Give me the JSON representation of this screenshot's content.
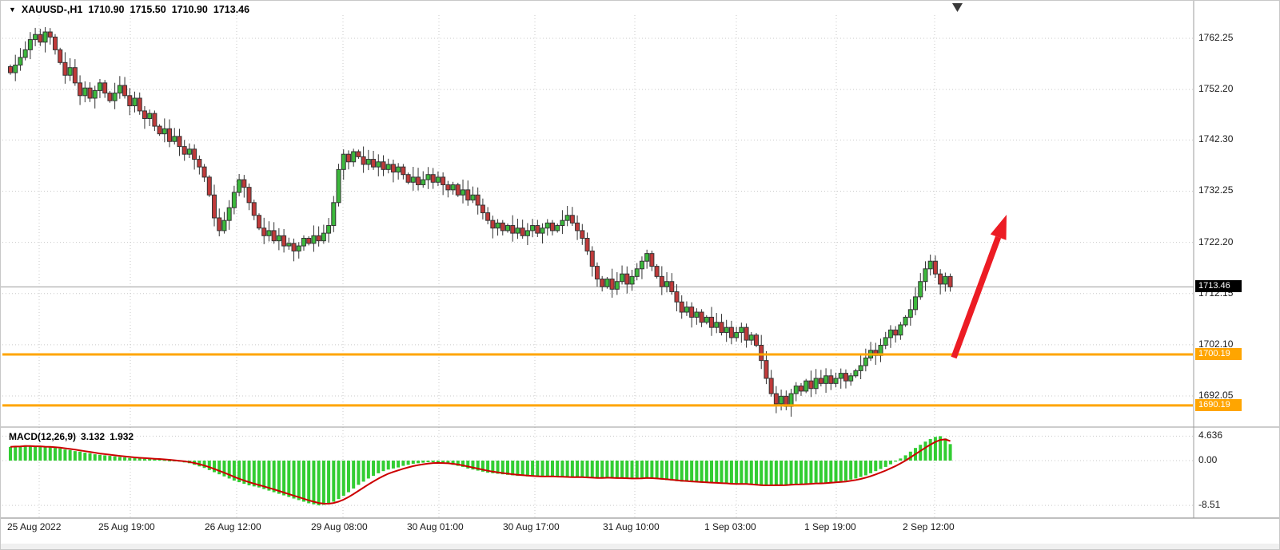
{
  "window": {
    "bg": "#ffffff",
    "border": "#c8c8c8"
  },
  "header": {
    "dropdown_icon": "▼",
    "symbol_period": "XAUUSD-,H1",
    "open": "1710.90",
    "high": "1715.50",
    "low": "1710.90",
    "close": "1713.46"
  },
  "indicator": {
    "label": "MACD(12,26,9)",
    "main_value": "3.132",
    "signal_value": "1.932"
  },
  "price_axis": {
    "labels": [
      "1762.25",
      "1752.20",
      "1742.30",
      "1732.25",
      "1722.20",
      "1712.15",
      "1702.10",
      "1692.05"
    ],
    "values": [
      1762.25,
      1752.2,
      1742.3,
      1732.25,
      1722.2,
      1712.15,
      1702.1,
      1692.05
    ]
  },
  "macd_axis": {
    "labels": [
      "4.636",
      "0.00",
      "-8.51"
    ],
    "values": [
      4.636,
      0,
      -8.51
    ]
  },
  "time_axis": {
    "labels": [
      "25 Aug 2022",
      "25 Aug 19:00",
      "26 Aug 12:00",
      "29 Aug 08:00",
      "30 Aug 01:00",
      "30 Aug 17:00",
      "31 Aug 10:00",
      "1 Sep 03:00",
      "1 Sep 19:00",
      "2 Sep 12:00"
    ],
    "x": [
      8,
      122,
      255,
      388,
      508,
      628,
      753,
      880,
      1005,
      1128
    ]
  },
  "tags": {
    "current": {
      "label": "1713.46",
      "price": 1713.46,
      "bg": "#000000",
      "fg": "#ffffff"
    },
    "levels": [
      {
        "label": "1700.19",
        "price": 1700.19,
        "bg": "#FFA500",
        "fg": "#ffffff"
      },
      {
        "label": "1690.19",
        "price": 1690.19,
        "bg": "#FFA500",
        "fg": "#ffffff"
      }
    ]
  },
  "colors": {
    "bull": "#3cb93c",
    "bear": "#c03a3a",
    "candle_stroke": "#333333",
    "grid": "#c9c9c9",
    "macd_hist": "#32cd32",
    "macd_signal": "#cc0000",
    "level_line": "#FFA500",
    "price_line": "#9a9a9a",
    "arrow": "#ec1c24",
    "separator": "#9b9b9b",
    "marker": "#3a3a3a"
  },
  "chart_data": {
    "type": "candlestick",
    "title": "XAUUSD-,H1",
    "symbol": "XAUUSD-",
    "timeframe": "H1",
    "ohlc_header": [
      1710.9,
      1715.5,
      1710.9,
      1713.46
    ],
    "x_ticks": [
      "25 Aug 2022",
      "25 Aug 19:00",
      "26 Aug 12:00",
      "29 Aug 08:00",
      "30 Aug 01:00",
      "30 Aug 17:00",
      "31 Aug 10:00",
      "1 Sep 03:00",
      "1 Sep 19:00",
      "2 Sep 12:00"
    ],
    "y_ticks": [
      1762.25,
      1752.2,
      1742.3,
      1732.25,
      1722.2,
      1712.15,
      1702.1,
      1692.05
    ],
    "ylim": [
      1687.0,
      1769.6
    ],
    "levels": [
      1700.19,
      1690.19
    ],
    "last_close": 1713.46,
    "closes": [
      1755.5,
      1757.0,
      1758.5,
      1760.0,
      1762.0,
      1763.0,
      1761.5,
      1763.5,
      1762.5,
      1760.0,
      1757.5,
      1755.0,
      1756.5,
      1753.5,
      1751.0,
      1752.5,
      1750.5,
      1752.0,
      1753.5,
      1751.5,
      1750.0,
      1751.5,
      1753.0,
      1751.0,
      1749.0,
      1750.5,
      1748.0,
      1746.5,
      1747.5,
      1745.0,
      1743.5,
      1744.5,
      1742.0,
      1743.0,
      1741.0,
      1739.5,
      1740.5,
      1738.5,
      1737.0,
      1735.0,
      1731.5,
      1727.0,
      1724.5,
      1726.5,
      1729.0,
      1732.0,
      1734.5,
      1733.0,
      1730.0,
      1727.5,
      1725.0,
      1723.5,
      1724.5,
      1722.5,
      1723.5,
      1721.5,
      1722.0,
      1720.5,
      1721.5,
      1723.0,
      1722.0,
      1723.5,
      1722.5,
      1724.0,
      1725.5,
      1730.0,
      1736.5,
      1739.5,
      1738.0,
      1740.0,
      1739.0,
      1737.5,
      1738.5,
      1737.0,
      1738.0,
      1736.5,
      1737.5,
      1736.0,
      1737.0,
      1735.5,
      1734.0,
      1735.0,
      1733.5,
      1734.5,
      1735.5,
      1734.0,
      1735.0,
      1733.5,
      1732.5,
      1733.5,
      1731.5,
      1732.5,
      1730.5,
      1731.5,
      1729.5,
      1728.0,
      1726.5,
      1725.0,
      1726.0,
      1724.5,
      1725.5,
      1724.0,
      1725.0,
      1723.5,
      1724.5,
      1725.5,
      1724.0,
      1725.0,
      1726.0,
      1724.5,
      1725.5,
      1726.5,
      1727.5,
      1726.0,
      1724.5,
      1723.0,
      1720.5,
      1717.5,
      1715.0,
      1713.5,
      1715.0,
      1713.0,
      1714.5,
      1716.0,
      1714.0,
      1715.5,
      1717.0,
      1718.5,
      1720.0,
      1717.5,
      1715.5,
      1713.5,
      1714.5,
      1712.5,
      1710.5,
      1708.5,
      1709.5,
      1707.5,
      1708.5,
      1706.5,
      1707.5,
      1705.5,
      1706.5,
      1704.5,
      1705.5,
      1703.5,
      1704.5,
      1705.5,
      1703.0,
      1704.0,
      1702.0,
      1699.0,
      1695.5,
      1692.5,
      1690.5,
      1692.0,
      1690.0,
      1692.5,
      1694.0,
      1693.0,
      1695.0,
      1693.5,
      1695.5,
      1694.5,
      1696.0,
      1694.5,
      1695.5,
      1696.5,
      1695.0,
      1696.0,
      1697.0,
      1698.0,
      1699.5,
      1701.0,
      1700.0,
      1702.0,
      1703.5,
      1705.0,
      1704.0,
      1706.0,
      1707.5,
      1709.0,
      1711.5,
      1714.5,
      1717.0,
      1718.5,
      1716.0,
      1714.0,
      1715.5,
      1713.46
    ],
    "macd": {
      "params": "12,26,9",
      "main_last": 3.132,
      "signal_last": 1.932,
      "ylim": [
        -10.9,
        5.6
      ],
      "y_ticks": [
        4.636,
        0,
        -8.51
      ],
      "hist": [
        2.6,
        2.8,
        2.7,
        2.9,
        2.8,
        2.6,
        2.7,
        2.5,
        2.6,
        2.4,
        2.3,
        2.1,
        2.0,
        1.8,
        1.7,
        1.5,
        1.4,
        1.2,
        1.1,
        1.0,
        0.9,
        0.8,
        0.7,
        0.6,
        0.5,
        0.45,
        0.4,
        0.35,
        0.3,
        0.25,
        0.2,
        0.1,
        0.0,
        -0.1,
        -0.2,
        -0.35,
        -0.5,
        -0.8,
        -1.1,
        -1.4,
        -1.8,
        -2.2,
        -2.6,
        -3.0,
        -3.4,
        -3.8,
        -4.1,
        -4.4,
        -4.7,
        -4.9,
        -5.1,
        -5.4,
        -5.7,
        -6.0,
        -6.3,
        -6.6,
        -6.9,
        -7.2,
        -7.5,
        -7.8,
        -8.1,
        -8.3,
        -8.5,
        -8.4,
        -8.2,
        -7.8,
        -7.3,
        -6.7,
        -6.0,
        -5.3,
        -4.6,
        -4.0,
        -3.4,
        -2.9,
        -2.4,
        -2.0,
        -1.7,
        -1.5,
        -1.3,
        -1.0,
        -0.8,
        -0.6,
        -0.5,
        -0.4,
        -0.3,
        -0.3,
        -0.4,
        -0.5,
        -0.6,
        -0.8,
        -1.0,
        -1.2,
        -1.5,
        -1.7,
        -1.9,
        -2.1,
        -2.3,
        -2.4,
        -2.5,
        -2.6,
        -2.7,
        -2.8,
        -2.9,
        -2.9,
        -3.0,
        -3.0,
        -3.1,
        -3.1,
        -3.0,
        -3.0,
        -3.1,
        -3.1,
        -3.2,
        -3.2,
        -3.1,
        -3.2,
        -3.3,
        -3.3,
        -3.4,
        -3.3,
        -3.2,
        -3.3,
        -3.4,
        -3.3,
        -3.4,
        -3.5,
        -3.4,
        -3.3,
        -3.2,
        -3.4,
        -3.5,
        -3.6,
        -3.7,
        -3.8,
        -3.9,
        -4.0,
        -4.0,
        -4.1,
        -4.1,
        -4.2,
        -4.2,
        -4.3,
        -4.3,
        -4.4,
        -4.4,
        -4.5,
        -4.5,
        -4.4,
        -4.5,
        -4.6,
        -4.7,
        -4.8,
        -4.8,
        -4.7,
        -4.6,
        -4.7,
        -4.6,
        -4.5,
        -4.4,
        -4.5,
        -4.4,
        -4.3,
        -4.2,
        -4.3,
        -4.2,
        -4.1,
        -4.0,
        -3.9,
        -3.8,
        -3.6,
        -3.4,
        -3.1,
        -2.8,
        -2.4,
        -2.0,
        -1.6,
        -1.2,
        -0.7,
        -0.2,
        0.4,
        1.0,
        1.7,
        2.4,
        3.0,
        3.6,
        4.1,
        4.5,
        4.636,
        4.2,
        3.132
      ]
    }
  }
}
